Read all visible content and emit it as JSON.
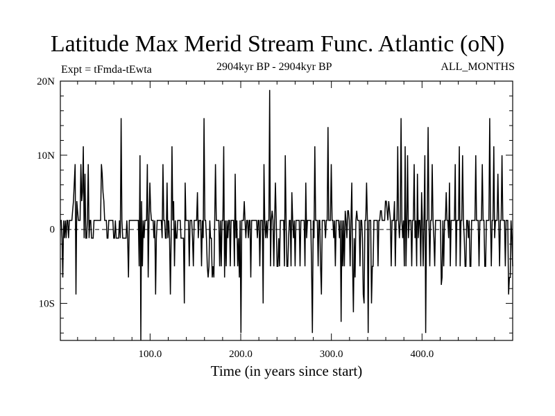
{
  "header": {
    "title": "Latitude Max Merid Stream Func. Atlantic (oN)",
    "expt_label": "Expt = tFmda-tEwta",
    "period_label": "2904kyr BP - 2904kyr BP",
    "months_label": "ALL_MONTHS"
  },
  "chart_data": {
    "type": "line",
    "xlabel": "Time (in years since start)",
    "ylabel": "",
    "xlim": [
      1,
      500
    ],
    "ylim": [
      -15,
      20
    ],
    "x_ticks": [
      100,
      200,
      300,
      400
    ],
    "x_tick_labels": [
      "100.0",
      "200.0",
      "300.0",
      "400.0"
    ],
    "y_ticks": [
      20,
      10,
      0,
      -10
    ],
    "y_tick_labels": [
      "20N",
      "10N",
      "0",
      "10S"
    ],
    "grid": false,
    "series": [
      {
        "values": [
          1.2,
          1.2,
          -1.2,
          -6.5,
          1.2,
          -1.2,
          1.2,
          -1.2,
          1.2,
          1.2,
          -1.2,
          1.2,
          1.2,
          1.2,
          1.2,
          2.5,
          3.8,
          6.3,
          8.8,
          -8.8,
          3.8,
          2.5,
          1.2,
          1.2,
          1.2,
          8.8,
          3.8,
          5.0,
          11.2,
          -1.2,
          7.5,
          -1.2,
          -1.2,
          1.2,
          8.8,
          -1.2,
          1.2,
          1.2,
          -1.2,
          -1.2,
          -1.2,
          1.2,
          1.2,
          1.2,
          1.2,
          1.2,
          1.2,
          1.2,
          1.2,
          1.2,
          8.8,
          7.5,
          5.0,
          3.8,
          1.2,
          1.2,
          1.2,
          -1.2,
          -1.2,
          1.2,
          1.2,
          1.2,
          1.2,
          1.2,
          1.2,
          -1.2,
          -1.2,
          1.2,
          -1.2,
          -1.2,
          -1.2,
          -1.2,
          1.2,
          -1.2,
          15.0,
          1.2,
          -1.2,
          -1.2,
          -1.2,
          -1.2,
          -1.2,
          1.2,
          -1.2,
          -6.5,
          1.2,
          1.2,
          1.2,
          1.2,
          1.2,
          1.2,
          1.2,
          1.2,
          1.2,
          1.2,
          1.2,
          1.2,
          -5.0,
          10.0,
          -15.0,
          3.8,
          -5.0,
          1.2,
          -1.2,
          1.2,
          1.2,
          1.2,
          8.8,
          -6.5,
          1.2,
          6.3,
          2.5,
          1.2,
          1.2,
          1.2,
          -1.2,
          1.2,
          -8.8,
          -1.2,
          1.2,
          1.2,
          1.2,
          1.2,
          1.2,
          1.2,
          -1.2,
          8.8,
          1.2,
          1.2,
          -1.2,
          -1.2,
          6.3,
          -1.2,
          1.2,
          -1.2,
          -8.8,
          -1.2,
          11.2,
          1.2,
          3.8,
          -5.0,
          1.2,
          -1.2,
          -1.2,
          1.2,
          1.2,
          1.2,
          1.2,
          -1.2,
          -1.2,
          -1.2,
          -1.2,
          -10.0,
          6.3,
          1.2,
          1.2,
          1.2,
          1.2,
          -5.0,
          1.2,
          1.2,
          1.2,
          -1.2,
          -5.0,
          1.2,
          1.2,
          1.2,
          1.2,
          5.0,
          -1.2,
          1.2,
          1.2,
          1.2,
          -5.0,
          1.2,
          -1.2,
          15.0,
          1.2,
          1.2,
          -1.2,
          -5.0,
          -6.5,
          -5.0,
          1.2,
          -1.2,
          -1.2,
          -6.5,
          -5.0,
          -6.5,
          1.2,
          8.8,
          1.2,
          1.2,
          1.2,
          1.2,
          -5.0,
          1.2,
          -5.0,
          1.2,
          1.2,
          11.2,
          -6.5,
          1.2,
          -5.0,
          1.2,
          -1.2,
          1.2,
          1.2,
          -5.0,
          1.2,
          1.2,
          1.2,
          1.2,
          -5.0,
          7.5,
          -1.2,
          1.2,
          -5.0,
          -1.2,
          -6.5,
          1.2,
          -14.0,
          1.2,
          1.2,
          1.2,
          3.8,
          1.2,
          -1.2,
          1.2,
          1.2,
          -1.2,
          1.2,
          1.2,
          -6.5,
          1.2,
          1.2,
          1.2,
          1.2,
          1.2,
          1.2,
          1.2,
          -1.2,
          1.2,
          1.2,
          -5.0,
          1.2,
          1.2,
          1.2,
          -10.0,
          8.8,
          1.2,
          -1.2,
          1.2,
          -1.2,
          1.2,
          1.2,
          18.8,
          -5.0,
          1.2,
          2.5,
          1.2,
          -5.0,
          1.2,
          6.3,
          1.2,
          -5.0,
          -5.0,
          -1.2,
          -5.0,
          1.2,
          1.2,
          1.2,
          1.2,
          1.2,
          -5.0,
          10.0,
          1.2,
          -5.0,
          -5.0,
          -1.2,
          1.2,
          1.2,
          -5.0,
          5.0,
          1.2,
          -1.2,
          1.2,
          -5.0,
          1.2,
          1.2,
          1.2,
          1.2,
          1.2,
          -5.0,
          1.2,
          1.2,
          1.2,
          1.2,
          1.2,
          -5.0,
          6.3,
          -1.2,
          1.2,
          1.2,
          1.2,
          1.2,
          1.2,
          -5.0,
          -14.0,
          1.2,
          -1.2,
          11.2,
          1.2,
          1.2,
          1.2,
          -5.0,
          1.2,
          1.2,
          -5.0,
          -8.8,
          1.2,
          1.2,
          1.2,
          1.2,
          -1.2,
          1.2,
          1.2,
          13.8,
          1.2,
          1.2,
          1.2,
          8.8,
          1.2,
          1.2,
          -1.2,
          1.2,
          -5.0,
          1.2,
          1.2,
          1.2,
          1.2,
          -1.2,
          1.2,
          -12.5,
          1.2,
          -5.0,
          1.2,
          -5.0,
          2.5,
          1.2,
          -1.2,
          2.5,
          2.5,
          1.2,
          -5.0,
          1.2,
          6.3,
          -5.0,
          -11.2,
          -1.2,
          -6.5,
          1.2,
          2.5,
          1.2,
          1.2,
          1.2,
          -5.0,
          1.2,
          1.2,
          -1.2,
          -8.8,
          -10.0,
          1.2,
          1.2,
          6.3,
          1.2,
          -14.0,
          1.2,
          1.2,
          1.2,
          -10.0,
          -5.0,
          -5.0,
          1.2,
          1.2,
          1.2,
          1.2,
          1.2,
          -5.0,
          1.2,
          1.2,
          2.5,
          2.5,
          1.2,
          1.2,
          1.2,
          1.2,
          3.8,
          3.8,
          2.5,
          1.2,
          3.8,
          2.5,
          1.2,
          -5.0,
          1.2,
          1.2,
          1.2,
          3.8,
          -5.0,
          1.2,
          1.2,
          11.2,
          1.2,
          -1.2,
          1.2,
          15.0,
          1.2,
          -1.2,
          1.2,
          -5.0,
          11.2,
          -5.0,
          1.2,
          10.0,
          -1.2,
          1.2,
          1.2,
          1.2,
          -5.0,
          1.2,
          1.2,
          8.8,
          -1.2,
          1.2,
          -5.0,
          7.5,
          -1.2,
          1.2,
          1.2,
          -5.0,
          5.0,
          1.2,
          -5.0,
          1.2,
          10.0,
          -14.0,
          1.2,
          1.2,
          13.8,
          1.2,
          -5.0,
          1.2,
          1.2,
          8.8,
          1.2,
          -1.2,
          -5.0,
          1.2,
          1.2,
          1.2,
          1.2,
          1.2,
          1.2,
          1.2,
          -7.5,
          -6.5,
          1.2,
          -5.0,
          1.2,
          1.2,
          5.0,
          1.2,
          1.2,
          -1.2,
          6.3,
          -5.0,
          1.2,
          1.2,
          1.2,
          1.2,
          1.2,
          8.8,
          -5.0,
          1.2,
          1.2,
          1.2,
          11.2,
          -5.0,
          1.2,
          1.2,
          10.0,
          1.2,
          -1.2,
          -5.0,
          -5.0,
          1.2,
          1.2,
          -1.2,
          1.2,
          -5.0,
          -5.0,
          1.2,
          1.2,
          1.2,
          1.2,
          1.2,
          10.0,
          1.2,
          1.2,
          1.2,
          -5.0,
          1.2,
          1.2,
          1.2,
          8.8,
          1.2,
          1.2,
          -5.0,
          -5.0,
          1.2,
          1.2,
          1.2,
          1.2,
          15.0,
          1.2,
          -5.0,
          1.2,
          1.2,
          11.2,
          -1.2,
          1.2,
          1.2,
          1.2,
          7.5,
          1.2,
          -5.0,
          1.2,
          1.2,
          10.0,
          1.2,
          1.2,
          1.2,
          -5.0,
          1.2,
          1.2,
          1.2,
          -8.8,
          -6.5,
          -6.5,
          1.2,
          -1.2,
          -5.0
        ]
      }
    ]
  }
}
